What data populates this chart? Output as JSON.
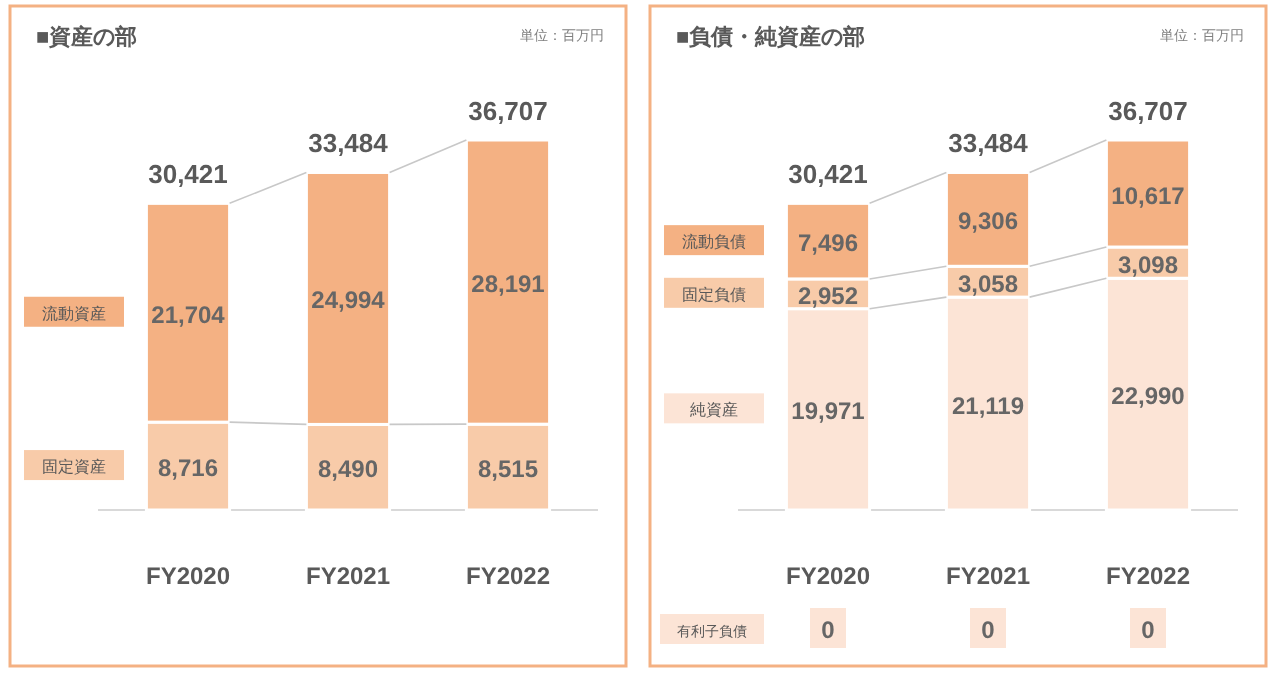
{
  "chart_data": [
    {
      "type": "bar",
      "title": "■資産の部",
      "stacked": true,
      "categories": [
        "FY2020",
        "FY2021",
        "FY2022"
      ],
      "series": [
        {
          "name": "固定資産",
          "color": "#f8cba9",
          "values": [
            8716,
            8490,
            8515
          ],
          "value_labels": [
            "8,716",
            "8,490",
            "8,515"
          ]
        },
        {
          "name": "流動資産",
          "color": "#f4b183",
          "values": [
            21704,
            24994,
            28191
          ],
          "value_labels": [
            "21,704",
            "24,994",
            "28,191"
          ]
        }
      ],
      "totals": [
        "30,421",
        "33,484",
        "36,707"
      ],
      "annotations": [
        "単位：百万円"
      ]
    },
    {
      "type": "bar",
      "title": "■負債・純資産の部",
      "stacked": true,
      "categories": [
        "FY2020",
        "FY2021",
        "FY2022"
      ],
      "series": [
        {
          "name": "純資産",
          "color": "#fce4d6",
          "values": [
            19971,
            21119,
            22990
          ],
          "value_labels": [
            "19,971",
            "21,119",
            "22,990"
          ]
        },
        {
          "name": "固定負債",
          "color": "#f8cba9",
          "values": [
            2952,
            3058,
            3098
          ],
          "value_labels": [
            "2,952",
            "3,058",
            "3,098"
          ]
        },
        {
          "name": "流動負債",
          "color": "#f4b183",
          "values": [
            7496,
            9306,
            10617
          ],
          "value_labels": [
            "7,496",
            "9,306",
            "10,617"
          ]
        }
      ],
      "totals": [
        "30,421",
        "33,484",
        "36,707"
      ],
      "annotations": [
        "単位：百万円",
        "有利子負債",
        "0",
        "0",
        "0"
      ]
    }
  ]
}
